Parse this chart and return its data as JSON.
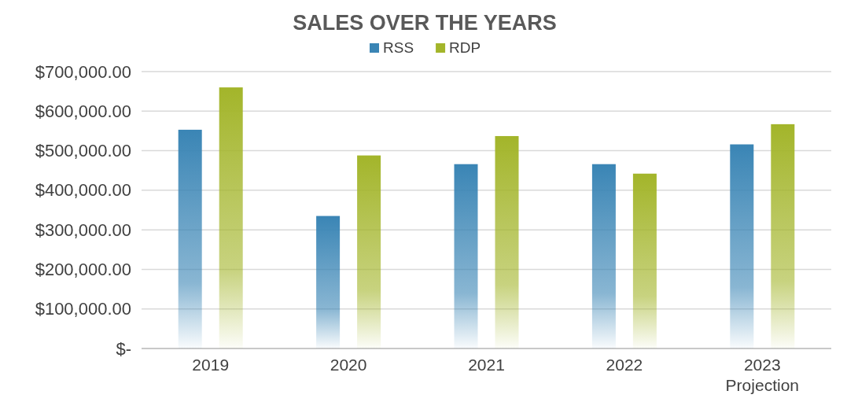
{
  "chart_data": {
    "type": "bar",
    "title": "SALES OVER THE YEARS",
    "categories": [
      "2019",
      "2020",
      "2021",
      "2022",
      "2023 Projection"
    ],
    "series": [
      {
        "name": "RSS",
        "color": "#3a85b5",
        "values": [
          553000,
          335000,
          466000,
          466000,
          516000
        ]
      },
      {
        "name": "RDP",
        "color": "#a3b52a",
        "values": [
          660000,
          488000,
          537000,
          442000,
          567000
        ]
      }
    ],
    "ylim": [
      0,
      700000
    ],
    "yticks": [
      {
        "value": 0,
        "label": "$-"
      },
      {
        "value": 100000,
        "label": "$100,000.00"
      },
      {
        "value": 200000,
        "label": "$200,000.00"
      },
      {
        "value": 300000,
        "label": "$300,000.00"
      },
      {
        "value": 400000,
        "label": "$400,000.00"
      },
      {
        "value": 500000,
        "label": "$500,000.00"
      },
      {
        "value": 600000,
        "label": "$600,000.00"
      },
      {
        "value": 700000,
        "label": "$700,000.00"
      }
    ],
    "grid": "y",
    "legend": "top"
  }
}
